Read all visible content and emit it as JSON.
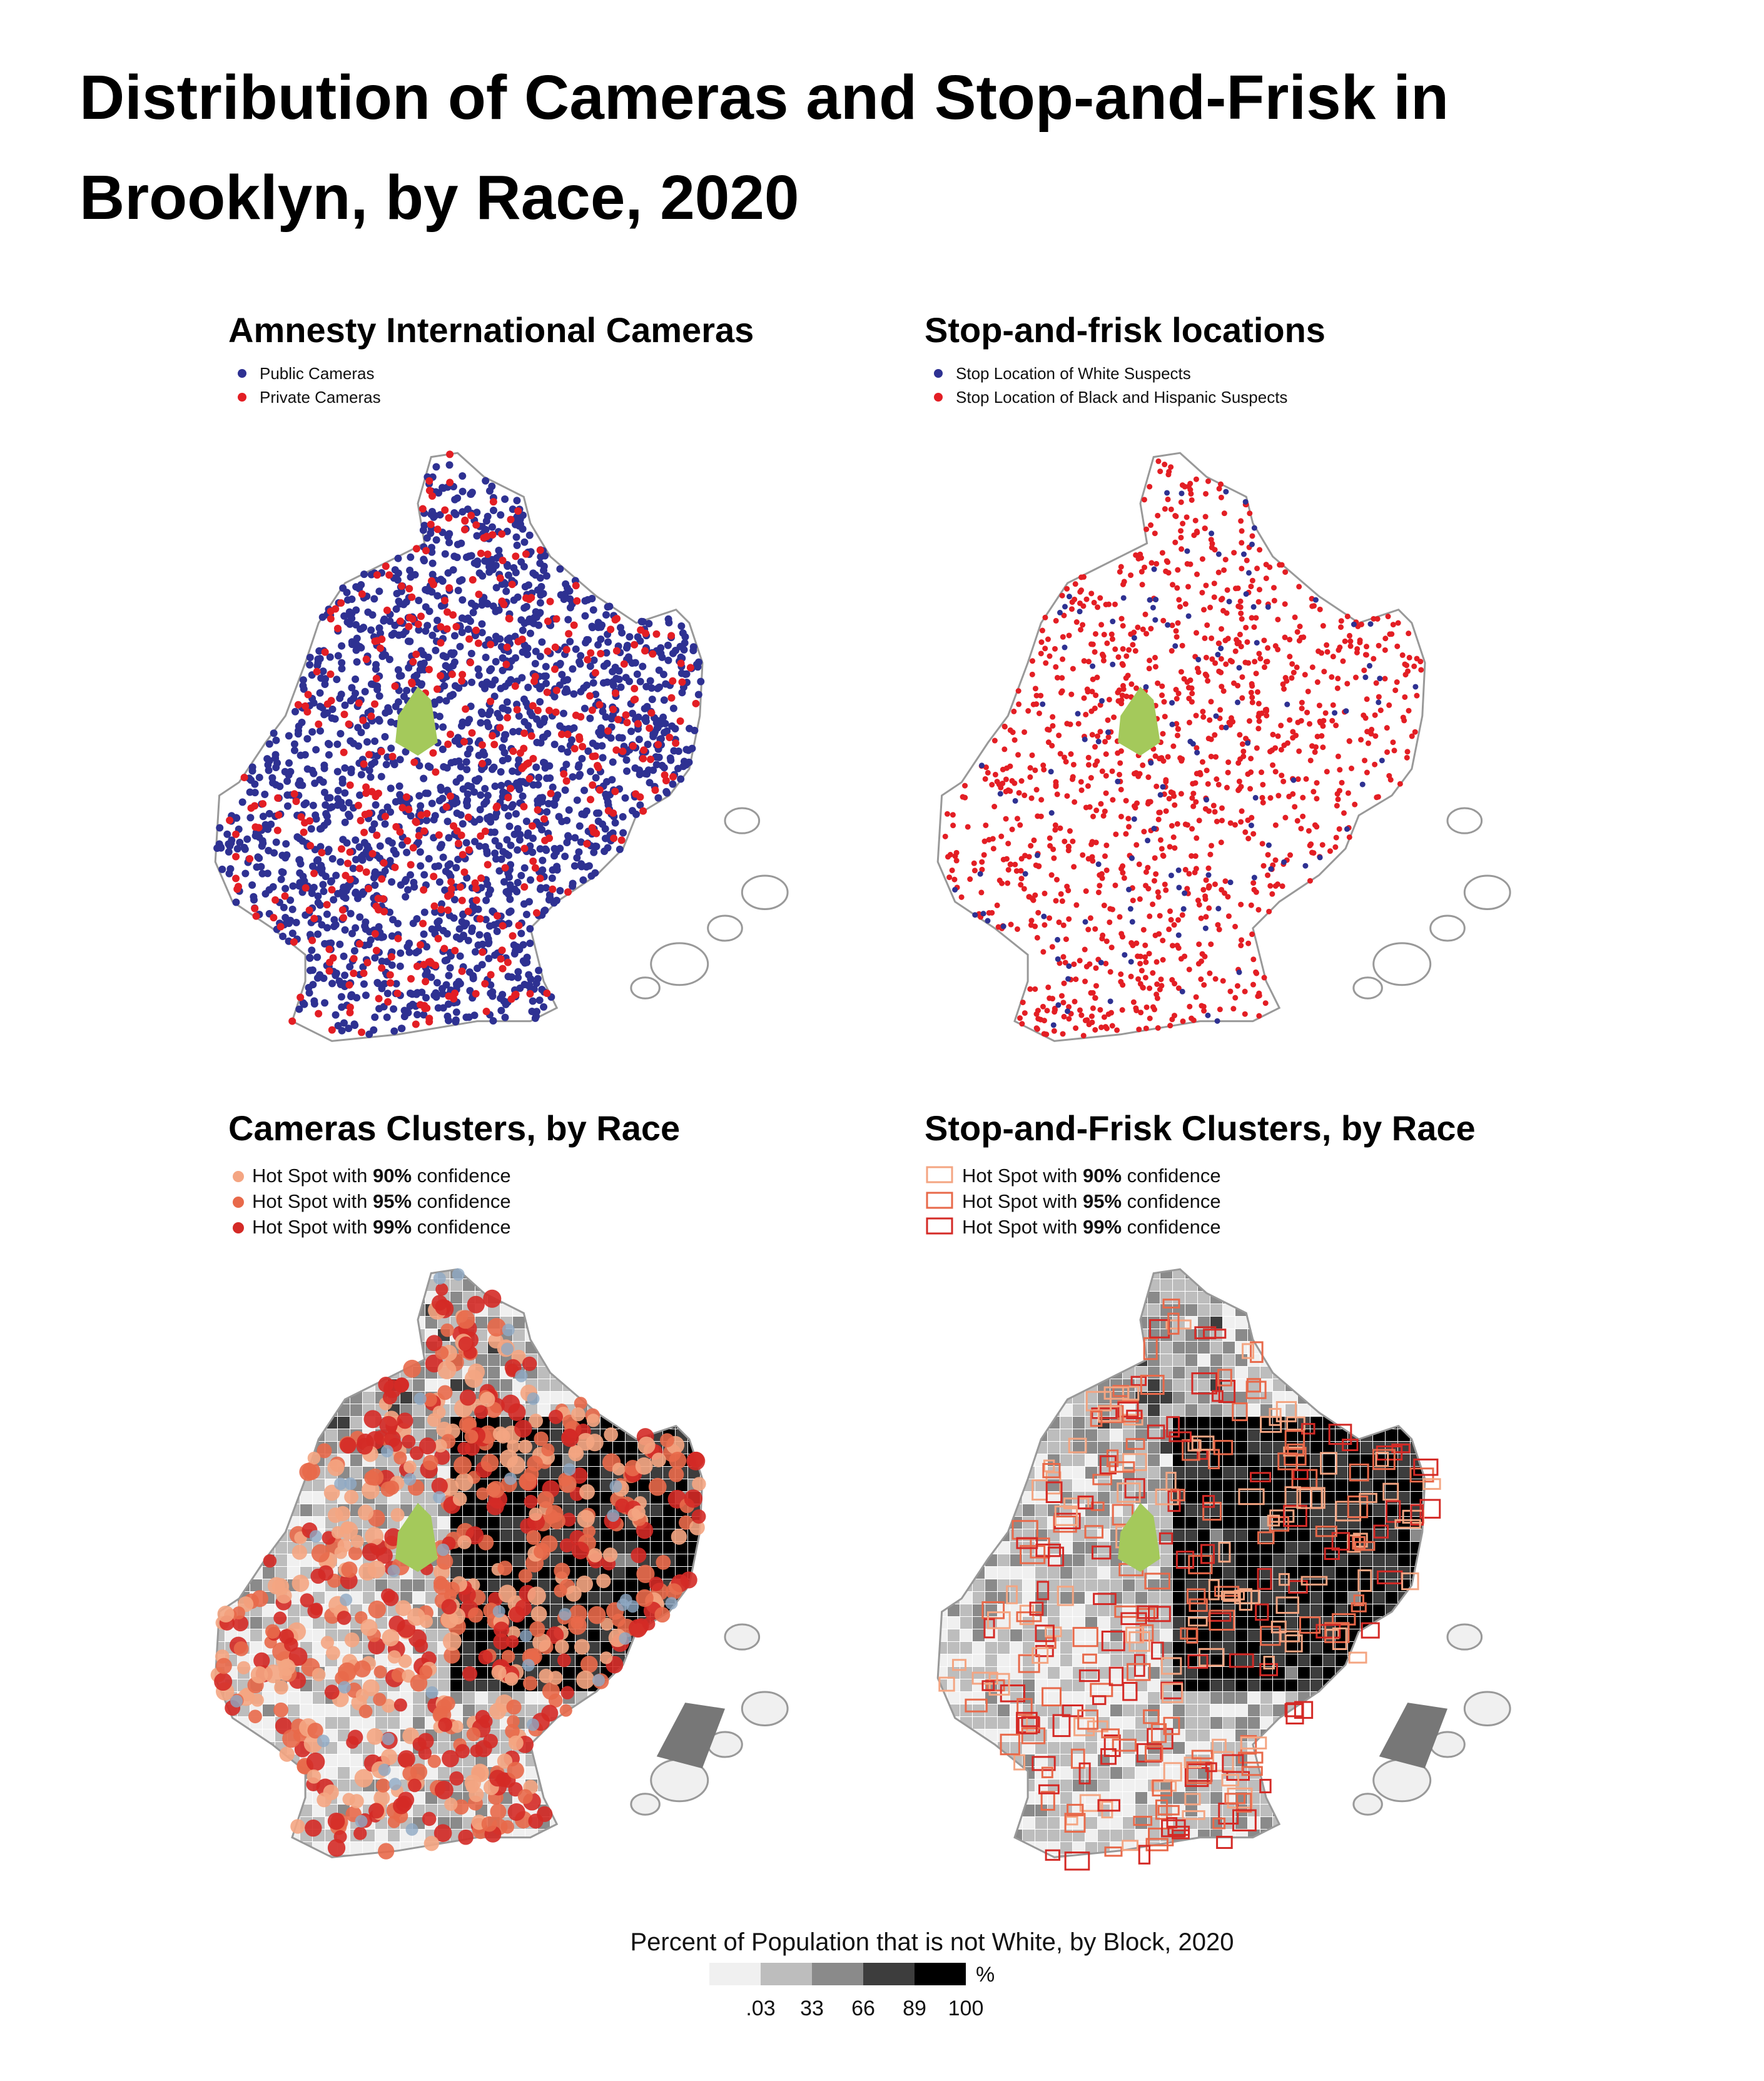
{
  "title_lines": [
    "Distribution of Cameras and Stop-and-Frisk in",
    "Brooklyn, by Race, 2020"
  ],
  "panels": [
    {
      "title": "Amnesty International Cameras",
      "marker": "dot",
      "legend": [
        {
          "label": "Public Cameras",
          "color": "#2e3192"
        },
        {
          "label": "Private Cameras",
          "color": "#e31e24"
        }
      ]
    },
    {
      "title": "Stop-and-frisk locations",
      "marker": "dot",
      "legend": [
        {
          "label": "Stop Location of White Suspects",
          "color": "#2e3192"
        },
        {
          "label": "Stop Location of Black and Hispanic Suspects",
          "color": "#e31e24"
        }
      ]
    },
    {
      "title": "Cameras Clusters, by Race",
      "marker": "dot",
      "legend": [
        {
          "before": "Hot Spot with ",
          "bold": "90%",
          "after": " confidence",
          "color": "#f4a582"
        },
        {
          "before": "Hot Spot with ",
          "bold": "95%",
          "after": " confidence",
          "color": "#e8694a"
        },
        {
          "before": "Hot Spot with ",
          "bold": "99%",
          "after": " confidence",
          "color": "#d42a26"
        }
      ]
    },
    {
      "title": "Stop-and-Frisk Clusters, by Race",
      "marker": "box",
      "legend": [
        {
          "before": "Hot Spot with ",
          "bold": "90%",
          "after": " confidence",
          "color": "#f4a582"
        },
        {
          "before": "Hot Spot with ",
          "bold": "95%",
          "after": " confidence",
          "color": "#e8694a"
        },
        {
          "before": "Hot Spot with ",
          "bold": "99%",
          "after": " confidence",
          "color": "#d42a26"
        }
      ]
    }
  ],
  "scale": {
    "title": "Percent of Population that is not White, by Block, 2020",
    "unit": "%",
    "labels": [
      ".03",
      "33",
      "66",
      "89",
      "100"
    ],
    "colors": [
      "#f0f0f0",
      "#bdbdbd",
      "#8a8a8a",
      "#3d3d3d",
      "#000000"
    ]
  }
}
